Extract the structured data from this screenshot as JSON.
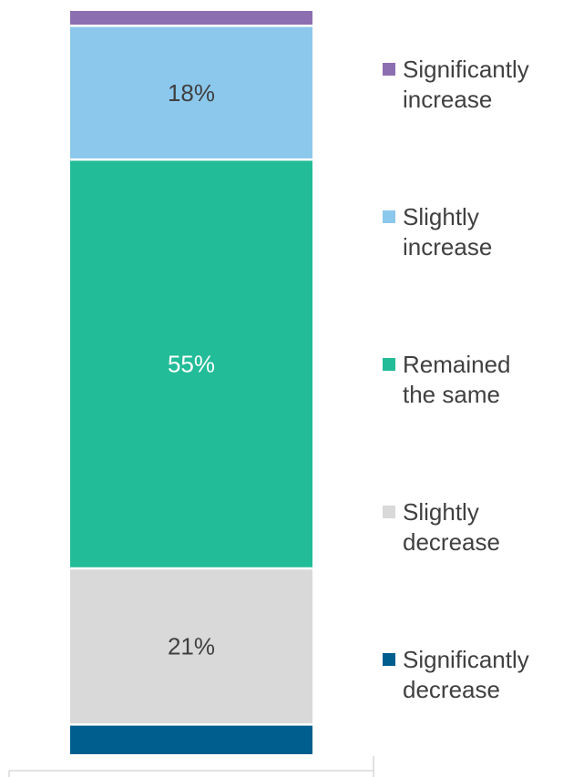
{
  "chart_data": {
    "type": "bar",
    "stacked": true,
    "orientation": "vertical",
    "unit": "%",
    "series": [
      {
        "name": "Significantly decrease",
        "value": 4,
        "label": "",
        "color": "#005e8f",
        "label_color": "#404040"
      },
      {
        "name": "Slightly decrease",
        "value": 21,
        "label": "21%",
        "color": "#d9d9d9",
        "label_color": "#404040"
      },
      {
        "name": "Remained the same",
        "value": 55,
        "label": "55%",
        "color": "#22bc98",
        "label_color": "#ffffff"
      },
      {
        "name": "Slightly increase",
        "value": 18,
        "label": "18%",
        "color": "#8cc8ec",
        "label_color": "#404040"
      },
      {
        "name": "Significantly increase",
        "value": 2,
        "label": "",
        "color": "#8c6fb0",
        "label_color": "#404040"
      }
    ],
    "legend": {
      "placement": "right",
      "order": [
        {
          "lines": [
            "Significantly",
            "increase"
          ],
          "color": "#8c6fb0"
        },
        {
          "lines": [
            "Slightly",
            "increase"
          ],
          "color": "#8cc8ec"
        },
        {
          "lines": [
            "Remained",
            "the same"
          ],
          "color": "#22bc98"
        },
        {
          "lines": [
            "Slightly",
            "decrease"
          ],
          "color": "#d9d9d9"
        },
        {
          "lines": [
            "Significantly",
            "decrease"
          ],
          "color": "#005e8f"
        }
      ]
    },
    "grid": false
  }
}
